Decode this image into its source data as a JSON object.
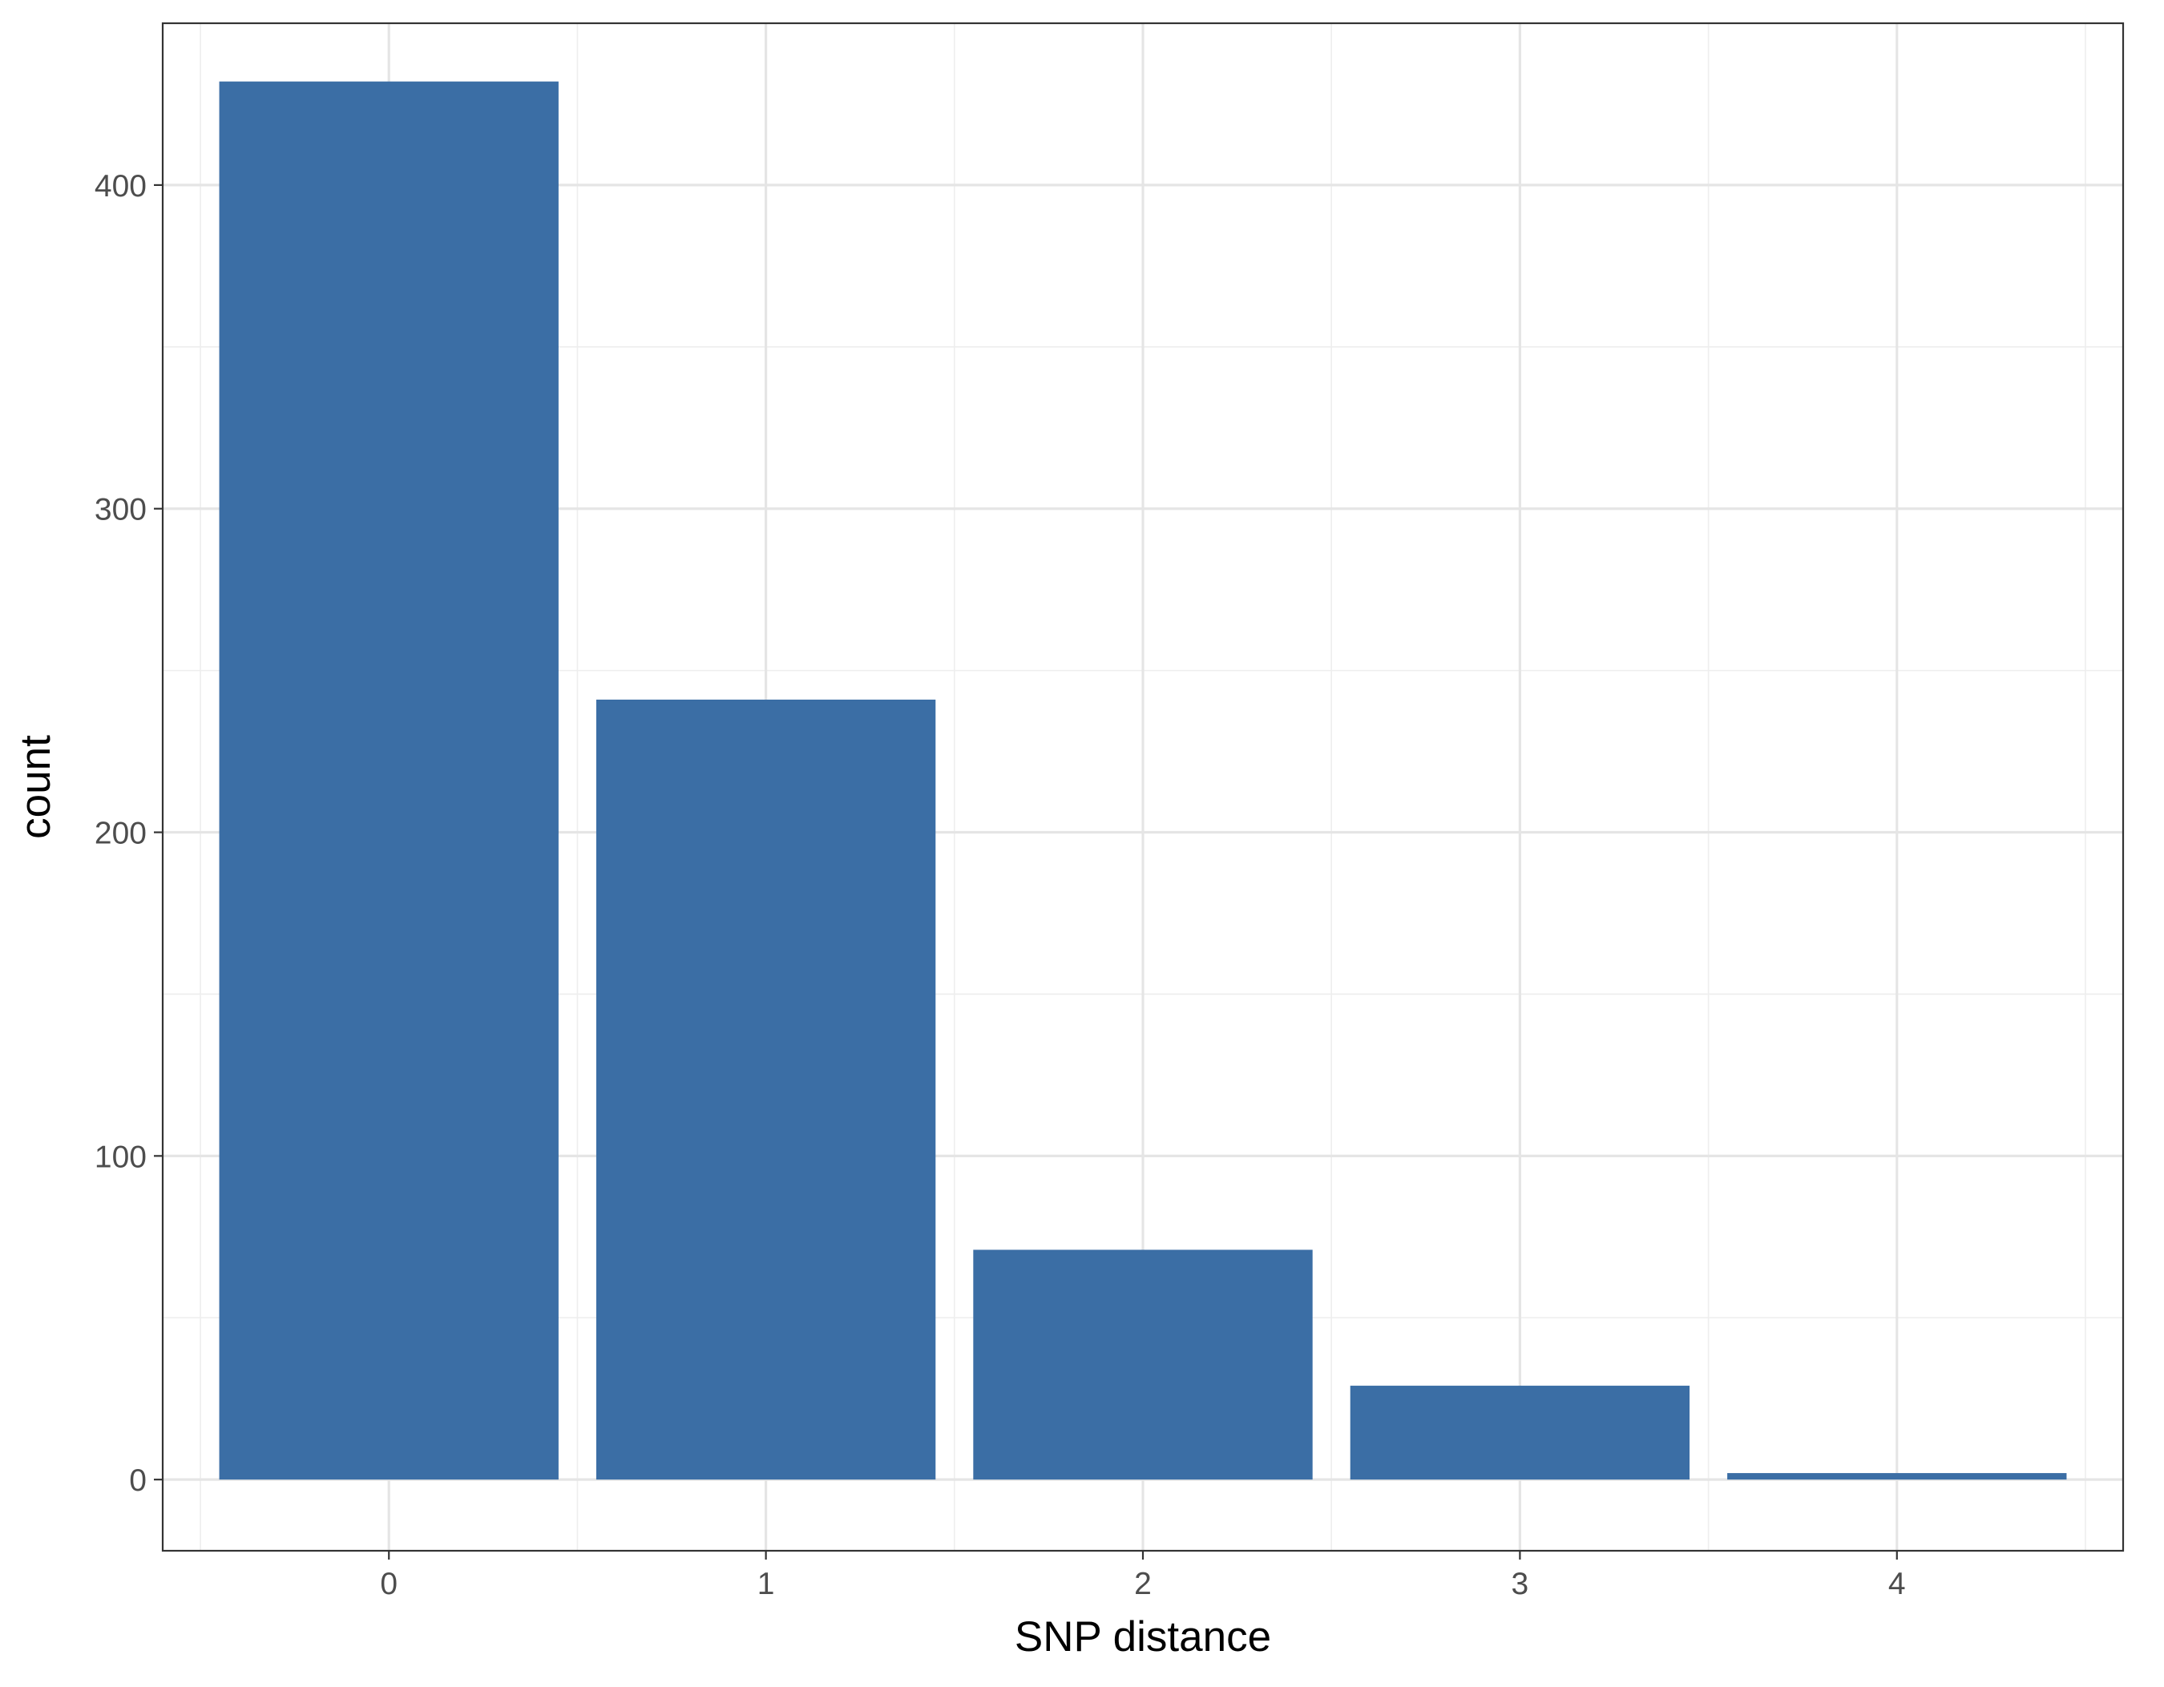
{
  "chart_data": {
    "type": "bar",
    "title": "",
    "xlabel": "SNP distance",
    "ylabel": "count",
    "categories": [
      "0",
      "1",
      "2",
      "3",
      "4"
    ],
    "values": [
      432,
      241,
      71,
      29,
      2
    ],
    "x_ticks": [
      "0",
      "1",
      "2",
      "3",
      "4"
    ],
    "y_ticks": [
      "0",
      "100",
      "200",
      "300",
      "400"
    ],
    "y_tick_values": [
      0,
      100,
      200,
      300,
      400
    ],
    "ylim": [
      -22,
      450
    ],
    "grid": true,
    "legend": "none",
    "colors": {
      "bar": "#3B6EA5",
      "panel_border": "#333333",
      "grid_major": "#E5E5E5",
      "grid_minor": "#EEEEEE",
      "tick_label": "#4D4D4D",
      "axis_title": "#000000"
    }
  }
}
